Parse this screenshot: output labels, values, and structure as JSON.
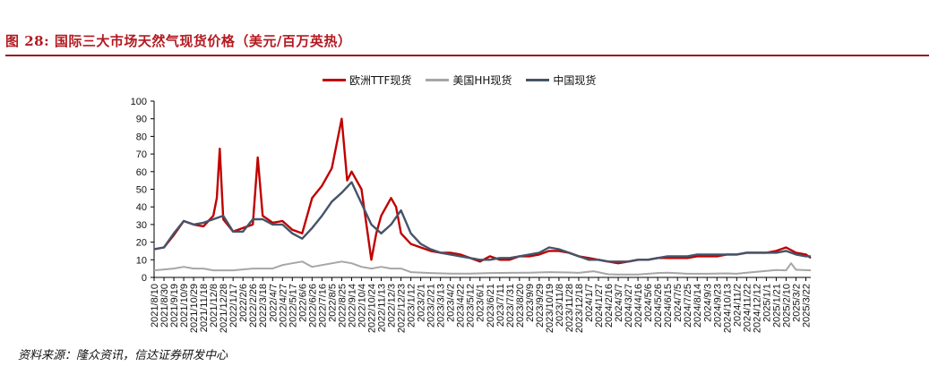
{
  "figure": {
    "title": "图 28:  国际三大市场天然气现货价格（美元/百万英热）",
    "source": "资料来源：隆众资讯，信达证券研发中心"
  },
  "chart_data": {
    "type": "line",
    "ylim": [
      0,
      100
    ],
    "yticks": [
      0,
      10,
      20,
      30,
      40,
      50,
      60,
      70,
      80,
      90,
      100
    ],
    "xlabel": "",
    "ylabel": "",
    "legend_position": "top",
    "grid": false,
    "x_tick_labels": [
      "2021/8/10",
      "2021/8/30",
      "2021/9/19",
      "2021/10/9",
      "2021/10/29",
      "2021/11/18",
      "2021/12/8",
      "2021/12/28",
      "2022/1/17",
      "2022/2/6",
      "2022/2/26",
      "2022/3/18",
      "2022/4/7",
      "2022/4/27",
      "2022/5/17",
      "2022/6/6",
      "2022/6/26",
      "2022/7/16",
      "2022/8/5",
      "2022/8/25",
      "2022/9/14",
      "2022/10/4",
      "2022/10/24",
      "2022/11/13",
      "2022/12/3",
      "2022/12/23",
      "2023/1/12",
      "2023/2/1",
      "2023/2/21",
      "2023/3/13",
      "2023/4/2",
      "2023/4/22",
      "2023/5/12",
      "2023/6/1",
      "2023/6/21",
      "2023/7/11",
      "2023/7/31",
      "2023/8/20",
      "2023/9/9",
      "2023/9/29",
      "2023/10/19",
      "2023/11/8",
      "2023/11/28",
      "2023/12/18",
      "2024/1/7",
      "2024/1/27",
      "2024/2/16",
      "2024/3/7",
      "2024/3/27",
      "2024/4/16",
      "2024/5/6",
      "2024/5/26",
      "2024/6/15",
      "2024/7/5",
      "2024/7/25",
      "2024/8/14",
      "2024/9/3",
      "2024/9/23",
      "2024/10/13",
      "2024/11/2",
      "2024/11/22",
      "2024/12/12",
      "2025/1/1",
      "2025/1/21",
      "2025/2/10",
      "2025/3/2",
      "2025/3/22"
    ],
    "series": [
      {
        "name": "欧洲TTF现货",
        "color": "#c00000",
        "points": [
          [
            "2021/8/10",
            16
          ],
          [
            "2021/8/30",
            17
          ],
          [
            "2021/9/19",
            24
          ],
          [
            "2021/10/9",
            32
          ],
          [
            "2021/10/29",
            30
          ],
          [
            "2021/11/18",
            29
          ],
          [
            "2021/12/8",
            35
          ],
          [
            "2021/12/15",
            45
          ],
          [
            "2021/12/21",
            73
          ],
          [
            "2021/12/28",
            33
          ],
          [
            "2022/1/17",
            26
          ],
          [
            "2022/2/6",
            28
          ],
          [
            "2022/2/26",
            30
          ],
          [
            "2022/3/8",
            68
          ],
          [
            "2022/3/18",
            35
          ],
          [
            "2022/4/7",
            31
          ],
          [
            "2022/4/27",
            32
          ],
          [
            "2022/5/17",
            27
          ],
          [
            "2022/6/6",
            25
          ],
          [
            "2022/6/26",
            45
          ],
          [
            "2022/7/16",
            52
          ],
          [
            "2022/8/5",
            62
          ],
          [
            "2022/8/25",
            90
          ],
          [
            "2022/9/5",
            55
          ],
          [
            "2022/9/14",
            60
          ],
          [
            "2022/10/4",
            50
          ],
          [
            "2022/10/14",
            30
          ],
          [
            "2022/10/24",
            10
          ],
          [
            "2022/11/3",
            25
          ],
          [
            "2022/11/13",
            35
          ],
          [
            "2022/12/3",
            45
          ],
          [
            "2022/12/13",
            40
          ],
          [
            "2022/12/23",
            25
          ],
          [
            "2023/1/12",
            19
          ],
          [
            "2023/2/1",
            17
          ],
          [
            "2023/2/21",
            15
          ],
          [
            "2023/3/13",
            14
          ],
          [
            "2023/4/2",
            14
          ],
          [
            "2023/4/22",
            13
          ],
          [
            "2023/5/12",
            11
          ],
          [
            "2023/6/1",
            9
          ],
          [
            "2023/6/21",
            12
          ],
          [
            "2023/7/11",
            10
          ],
          [
            "2023/7/31",
            10
          ],
          [
            "2023/8/20",
            12
          ],
          [
            "2023/9/9",
            12
          ],
          [
            "2023/9/29",
            13
          ],
          [
            "2023/10/19",
            15
          ],
          [
            "2023/11/8",
            15
          ],
          [
            "2023/11/28",
            14
          ],
          [
            "2023/12/18",
            12
          ],
          [
            "2024/1/7",
            11
          ],
          [
            "2024/1/27",
            10
          ],
          [
            "2024/2/16",
            9
          ],
          [
            "2024/3/7",
            8
          ],
          [
            "2024/3/27",
            9
          ],
          [
            "2024/4/16",
            10
          ],
          [
            "2024/5/6",
            10
          ],
          [
            "2024/5/26",
            11
          ],
          [
            "2024/6/15",
            11
          ],
          [
            "2024/7/5",
            11
          ],
          [
            "2024/7/25",
            11
          ],
          [
            "2024/8/14",
            12
          ],
          [
            "2024/9/3",
            12
          ],
          [
            "2024/9/23",
            12
          ],
          [
            "2024/10/13",
            13
          ],
          [
            "2024/11/2",
            13
          ],
          [
            "2024/11/22",
            14
          ],
          [
            "2024/12/12",
            14
          ],
          [
            "2025/1/1",
            14
          ],
          [
            "2025/1/21",
            15
          ],
          [
            "2025/2/10",
            17
          ],
          [
            "2025/3/2",
            14
          ],
          [
            "2025/3/22",
            13
          ],
          [
            "2025/4/1",
            11
          ]
        ]
      },
      {
        "name": "美国HH现货",
        "color": "#a6a6a6",
        "points": [
          [
            "2021/8/10",
            4
          ],
          [
            "2021/9/19",
            5
          ],
          [
            "2021/10/9",
            6
          ],
          [
            "2021/10/29",
            5
          ],
          [
            "2021/11/18",
            5
          ],
          [
            "2021/12/8",
            4
          ],
          [
            "2022/1/17",
            4
          ],
          [
            "2022/2/26",
            5
          ],
          [
            "2022/4/7",
            5
          ],
          [
            "2022/4/27",
            7
          ],
          [
            "2022/5/17",
            8
          ],
          [
            "2022/6/6",
            9
          ],
          [
            "2022/6/26",
            6
          ],
          [
            "2022/7/16",
            7
          ],
          [
            "2022/8/25",
            9
          ],
          [
            "2022/9/14",
            8
          ],
          [
            "2022/10/4",
            6
          ],
          [
            "2022/10/24",
            5
          ],
          [
            "2022/11/13",
            6
          ],
          [
            "2022/12/3",
            5
          ],
          [
            "2022/12/23",
            5
          ],
          [
            "2023/1/12",
            3
          ],
          [
            "2023/2/21",
            2.5
          ],
          [
            "2023/4/2",
            2.2
          ],
          [
            "2023/5/12",
            2.2
          ],
          [
            "2023/6/21",
            2.5
          ],
          [
            "2023/7/31",
            2.6
          ],
          [
            "2023/9/9",
            2.7
          ],
          [
            "2023/10/19",
            3
          ],
          [
            "2023/11/28",
            2.8
          ],
          [
            "2023/12/18",
            2.6
          ],
          [
            "2024/1/17",
            3.5
          ],
          [
            "2024/2/16",
            1.8
          ],
          [
            "2024/3/7",
            1.7
          ],
          [
            "2024/4/16",
            1.6
          ],
          [
            "2024/5/26",
            2.5
          ],
          [
            "2024/6/15",
            2.7
          ],
          [
            "2024/7/25",
            2.1
          ],
          [
            "2024/9/3",
            2.1
          ],
          [
            "2024/10/13",
            2.3
          ],
          [
            "2024/11/2",
            2.1
          ],
          [
            "2024/11/22",
            2.7
          ],
          [
            "2024/12/12",
            3.2
          ],
          [
            "2025/1/21",
            4.2
          ],
          [
            "2025/2/10",
            4
          ],
          [
            "2025/2/20",
            8
          ],
          [
            "2025/3/2",
            4.3
          ],
          [
            "2025/3/22",
            4.1
          ],
          [
            "2025/4/1",
            4
          ]
        ]
      },
      {
        "name": "中国现货",
        "color": "#44546a",
        "points": [
          [
            "2021/8/10",
            16
          ],
          [
            "2021/8/30",
            17
          ],
          [
            "2021/9/19",
            25
          ],
          [
            "2021/10/9",
            32
          ],
          [
            "2021/10/29",
            30
          ],
          [
            "2021/11/18",
            31
          ],
          [
            "2021/12/8",
            33
          ],
          [
            "2021/12/28",
            35
          ],
          [
            "2022/1/17",
            26
          ],
          [
            "2022/2/6",
            26
          ],
          [
            "2022/2/26",
            33
          ],
          [
            "2022/3/18",
            33
          ],
          [
            "2022/4/7",
            30
          ],
          [
            "2022/4/27",
            30
          ],
          [
            "2022/5/17",
            25
          ],
          [
            "2022/6/6",
            22
          ],
          [
            "2022/6/26",
            28
          ],
          [
            "2022/7/16",
            35
          ],
          [
            "2022/8/5",
            43
          ],
          [
            "2022/8/25",
            48
          ],
          [
            "2022/9/14",
            54
          ],
          [
            "2022/10/4",
            42
          ],
          [
            "2022/10/24",
            30
          ],
          [
            "2022/11/13",
            25
          ],
          [
            "2022/12/3",
            30
          ],
          [
            "2022/12/23",
            38
          ],
          [
            "2023/1/12",
            25
          ],
          [
            "2023/2/1",
            19
          ],
          [
            "2023/2/21",
            16
          ],
          [
            "2023/3/13",
            14
          ],
          [
            "2023/4/2",
            13
          ],
          [
            "2023/4/22",
            12
          ],
          [
            "2023/5/12",
            11
          ],
          [
            "2023/6/1",
            10
          ],
          [
            "2023/6/21",
            10
          ],
          [
            "2023/7/11",
            11
          ],
          [
            "2023/7/31",
            11
          ],
          [
            "2023/8/20",
            12
          ],
          [
            "2023/9/9",
            13
          ],
          [
            "2023/9/29",
            14
          ],
          [
            "2023/10/19",
            17
          ],
          [
            "2023/11/8",
            16
          ],
          [
            "2023/11/28",
            14
          ],
          [
            "2023/12/18",
            12
          ],
          [
            "2024/1/7",
            10
          ],
          [
            "2024/1/27",
            10
          ],
          [
            "2024/2/16",
            9
          ],
          [
            "2024/3/7",
            9
          ],
          [
            "2024/3/27",
            9
          ],
          [
            "2024/4/16",
            10
          ],
          [
            "2024/5/6",
            10
          ],
          [
            "2024/5/26",
            11
          ],
          [
            "2024/6/15",
            12
          ],
          [
            "2024/7/5",
            12
          ],
          [
            "2024/7/25",
            12
          ],
          [
            "2024/8/14",
            13
          ],
          [
            "2024/9/3",
            13
          ],
          [
            "2024/9/23",
            13
          ],
          [
            "2024/10/13",
            13
          ],
          [
            "2024/11/2",
            13
          ],
          [
            "2024/11/22",
            14
          ],
          [
            "2024/12/12",
            14
          ],
          [
            "2025/1/1",
            14
          ],
          [
            "2025/1/21",
            14
          ],
          [
            "2025/2/10",
            15
          ],
          [
            "2025/3/2",
            13
          ],
          [
            "2025/3/22",
            12
          ],
          [
            "2025/4/1",
            12
          ]
        ]
      }
    ]
  }
}
